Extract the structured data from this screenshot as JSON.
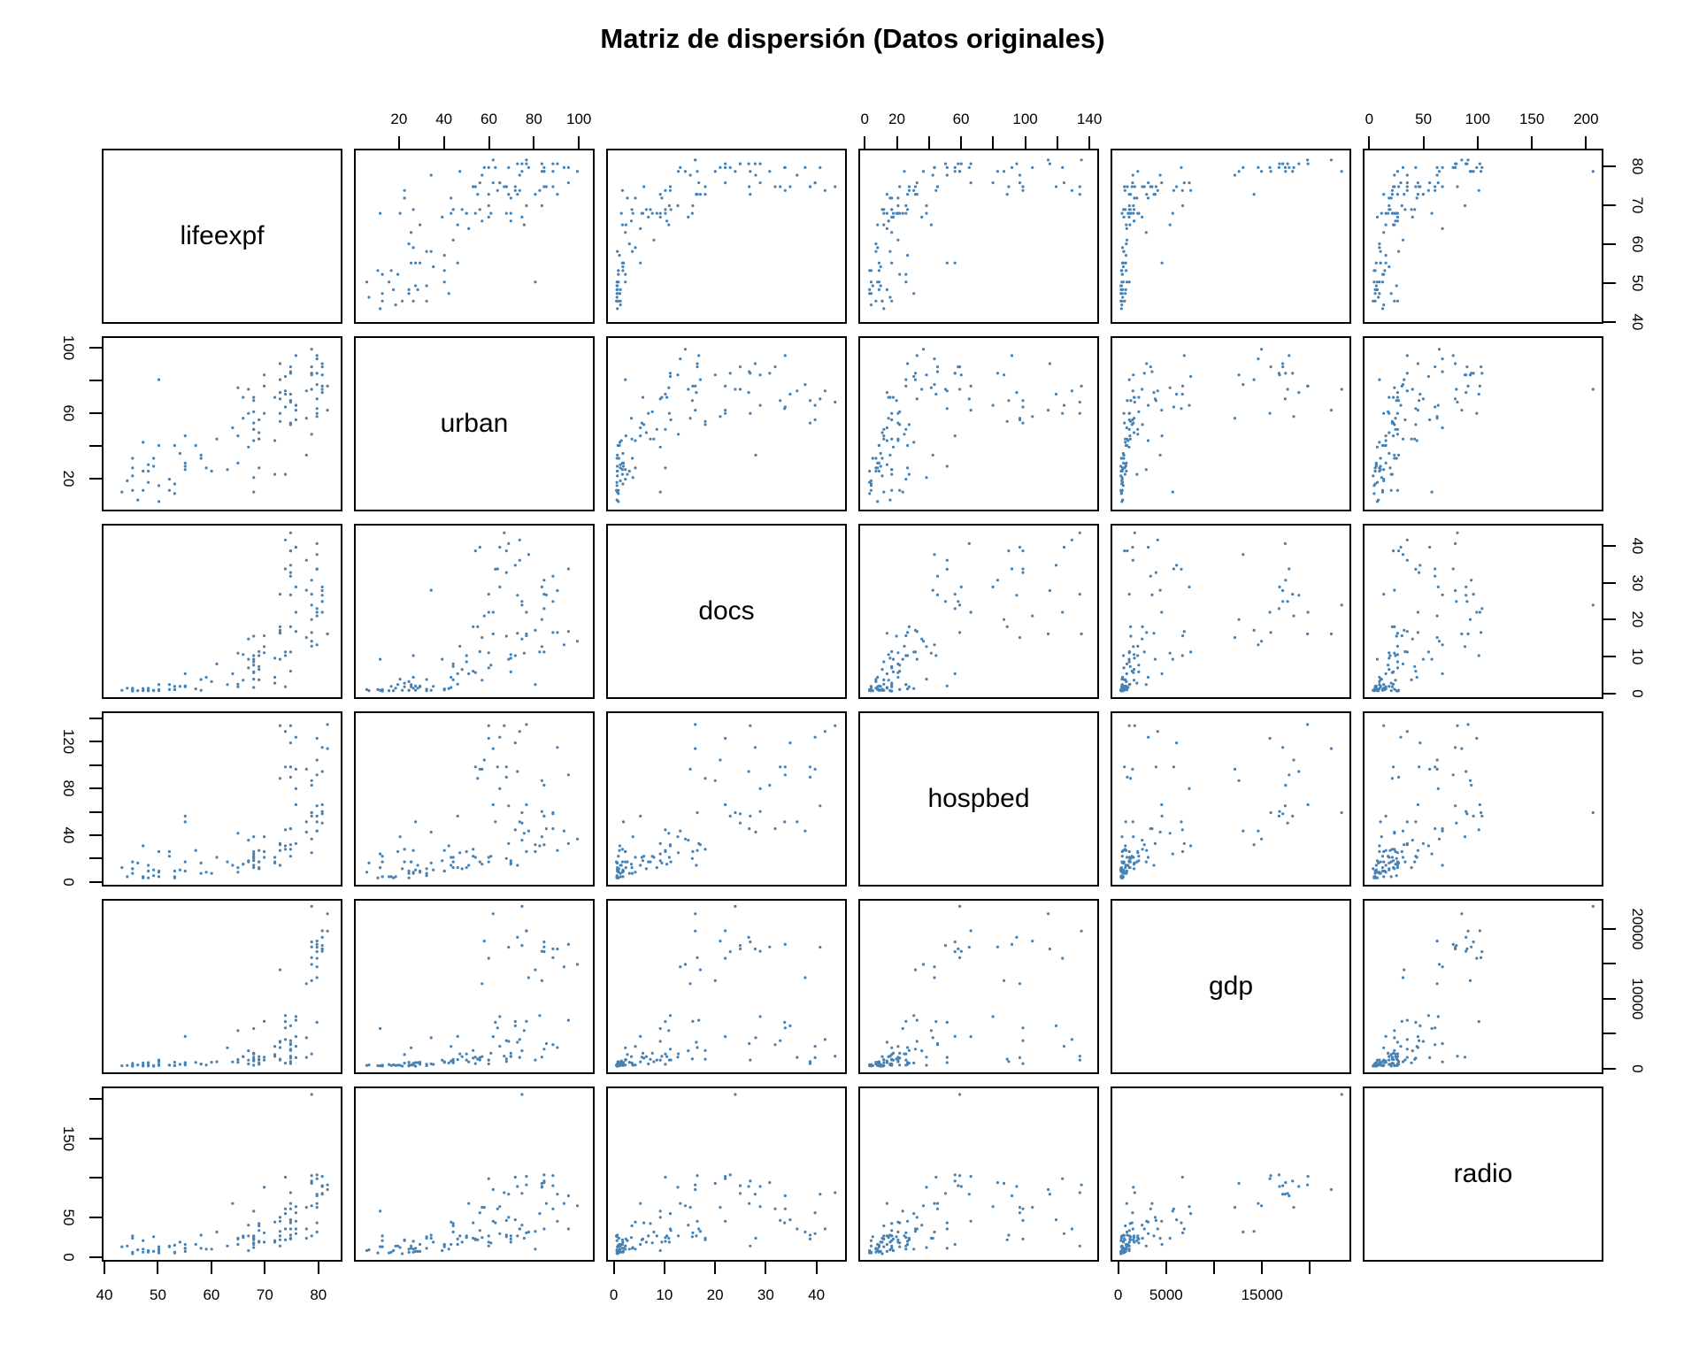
{
  "title": "Matriz de dispersión (Datos originales)",
  "point_color": "#4682B4",
  "chart_data": {
    "type": "scatter-matrix",
    "title": "Matriz de dispersión (Datos originales)",
    "columns": [
      "lifeexpf",
      "urban",
      "docs",
      "hospbed",
      "gdp",
      "radio"
    ],
    "variables": [
      {
        "name": "lifeexpf",
        "domain": [
          39.5,
          84.5
        ]
      },
      {
        "name": "urban",
        "domain": [
          0,
          107
        ]
      },
      {
        "name": "docs",
        "domain": [
          -1.5,
          46
        ]
      },
      {
        "name": "hospbed",
        "domain": [
          -4,
          146
        ]
      },
      {
        "name": "gdp",
        "domain": [
          -800,
          24300
        ]
      },
      {
        "name": "radio",
        "domain": [
          -6,
          216
        ]
      }
    ],
    "axes": {
      "top": [
        {
          "col": 1,
          "var": 1,
          "values": [
            20,
            40,
            60,
            80,
            100
          ],
          "labels": [
            "20",
            "40",
            "60",
            "80",
            "100"
          ]
        },
        {
          "col": 3,
          "var": 3,
          "values": [
            0,
            20,
            40,
            60,
            80,
            100,
            120,
            140
          ],
          "labels": [
            "0",
            "20",
            "",
            "60",
            "",
            "100",
            "",
            "140"
          ]
        },
        {
          "col": 5,
          "var": 5,
          "values": [
            0,
            50,
            100,
            150,
            200
          ],
          "labels": [
            "0",
            "50",
            "100",
            "150",
            "200"
          ]
        }
      ],
      "bottom": [
        {
          "col": 0,
          "var": 0,
          "values": [
            40,
            50,
            60,
            70,
            80
          ],
          "labels": [
            "40",
            "50",
            "60",
            "70",
            "80"
          ]
        },
        {
          "col": 2,
          "var": 2,
          "values": [
            0,
            10,
            20,
            30,
            40
          ],
          "labels": [
            "0",
            "10",
            "20",
            "30",
            "40"
          ]
        },
        {
          "col": 4,
          "var": 4,
          "values": [
            0,
            5000,
            10000,
            15000,
            20000
          ],
          "labels": [
            "0",
            "5000",
            "",
            "15000",
            ""
          ]
        }
      ],
      "left": [
        {
          "row": 1,
          "var": 1,
          "values": [
            20,
            40,
            60,
            80,
            100
          ],
          "labels": [
            "20",
            "",
            "60",
            "",
            "100"
          ]
        },
        {
          "row": 3,
          "var": 3,
          "values": [
            0,
            20,
            40,
            60,
            80,
            100,
            120,
            140
          ],
          "labels": [
            "0",
            "",
            "40",
            "",
            "80",
            "",
            "120",
            ""
          ]
        },
        {
          "row": 5,
          "var": 5,
          "values": [
            0,
            50,
            100,
            150,
            200
          ],
          "labels": [
            "0",
            "50",
            "",
            "150",
            ""
          ]
        }
      ],
      "right": [
        {
          "row": 0,
          "var": 0,
          "values": [
            40,
            50,
            60,
            70,
            80
          ],
          "labels": [
            "40",
            "50",
            "60",
            "70",
            "80"
          ]
        },
        {
          "row": 2,
          "var": 2,
          "values": [
            0,
            10,
            20,
            30,
            40
          ],
          "labels": [
            "0",
            "10",
            "20",
            "30",
            "40"
          ]
        },
        {
          "row": 4,
          "var": 4,
          "values": [
            0,
            5000,
            10000,
            15000,
            20000
          ],
          "labels": [
            "0",
            "",
            "10000",
            "",
            "20000"
          ]
        }
      ]
    },
    "observations": [
      [
        44,
        18,
        1,
        3,
        205,
        12
      ],
      [
        48,
        28,
        1,
        13,
        620,
        5
      ],
      [
        47,
        12,
        0.3,
        3,
        122,
        19
      ],
      [
        47,
        24,
        0.4,
        2,
        251,
        4
      ],
      [
        49,
        32,
        0.3,
        4,
        188,
        24
      ],
      [
        50,
        15,
        0.3,
        3,
        357,
        3
      ],
      [
        48,
        17,
        0.3,
        2,
        296,
        6
      ],
      [
        48,
        24,
        0.4,
        8,
        126,
        4
      ],
      [
        43,
        11,
        0.4,
        11,
        161,
        11
      ],
      [
        46,
        6,
        0.3,
        15,
        292,
        7
      ],
      [
        50,
        5,
        0.6,
        7,
        208,
        6
      ],
      [
        45,
        26,
        1,
        6,
        511,
        4
      ],
      [
        45,
        32,
        0.7,
        10,
        164,
        22
      ],
      [
        49,
        27,
        0.4,
        9,
        98,
        5
      ],
      [
        45,
        12,
        0.2,
        16,
        226,
        25
      ],
      [
        47,
        42,
        0.9,
        30,
        573,
        8
      ],
      [
        45,
        21,
        0.4,
        10,
        110,
        2
      ],
      [
        54,
        35,
        1.5,
        9,
        360,
        17
      ],
      [
        58,
        34,
        0.4,
        15,
        430,
        26
      ],
      [
        55,
        25,
        1.4,
        16,
        271,
        9
      ],
      [
        50,
        40,
        0.5,
        8,
        750,
        11
      ],
      [
        57,
        40,
        0.8,
        26,
        650,
        14
      ],
      [
        53,
        40,
        0.6,
        8,
        670,
        13
      ],
      [
        55,
        27,
        1.6,
        51,
        620,
        9
      ],
      [
        63,
        25,
        2,
        16,
        2790,
        12
      ],
      [
        55,
        46,
        5,
        56,
        4450,
        14
      ],
      [
        50,
        81,
        2,
        25,
        1000,
        8
      ],
      [
        55,
        29,
        1.6,
        8,
        383,
        5
      ],
      [
        64,
        51,
        5,
        13,
        730,
        67
      ],
      [
        59,
        26,
        4,
        7,
        275,
        8
      ],
      [
        53,
        16,
        1.5,
        3,
        202,
        4
      ],
      [
        58,
        32,
        3.4,
        6,
        406,
        9
      ],
      [
        53,
        10,
        0.6,
        2,
        165,
        3
      ],
      [
        52,
        12,
        0.6,
        21,
        260,
        11
      ],
      [
        52,
        19,
        2,
        25,
        250,
        12
      ],
      [
        60,
        24,
        2.8,
        6,
        676,
        8
      ],
      [
        68,
        20,
        3.5,
        38,
        230,
        10
      ],
      [
        65,
        29,
        1.4,
        7,
        681,
        14
      ],
      [
        68,
        43,
        1.2,
        13,
        867,
        14
      ],
      [
        69,
        26,
        10,
        26,
        377,
        18
      ],
      [
        61,
        44,
        7.7,
        20,
        748,
        30
      ],
      [
        65,
        46,
        2.1,
        11,
        1062,
        21
      ],
      [
        68,
        50,
        10,
        25,
        1886,
        23
      ],
      [
        68,
        54,
        5.3,
        20,
        1428,
        20
      ],
      [
        65,
        76,
        10.7,
        41,
        5310,
        22
      ],
      [
        68,
        70,
        5.5,
        17,
        2000,
        21
      ],
      [
        66,
        57,
        3.2,
        14,
        1500,
        23
      ],
      [
        68,
        50,
        8.3,
        11,
        1000,
        25
      ],
      [
        68,
        68,
        15.4,
        19,
        1157,
        24
      ],
      [
        70,
        77,
        15.5,
        25,
        6651,
        29
      ],
      [
        68,
        61,
        7.4,
        21,
        2000,
        16
      ],
      [
        70,
        84,
        12.5,
        38,
        1429,
        88
      ],
      [
        68,
        11,
        9,
        23,
        5600,
        57
      ],
      [
        73,
        81,
        17,
        31,
        14193,
        31
      ],
      [
        76,
        96,
        16.7,
        32,
        6818,
        34
      ],
      [
        74,
        83,
        11,
        30,
        7500,
        54
      ],
      [
        73,
        73,
        16.2,
        13,
        3604,
        25
      ],
      [
        67,
        39,
        9,
        17,
        980,
        6
      ],
      [
        69,
        44,
        3.3,
        11,
        580,
        38
      ],
      [
        69,
        44,
        7,
        16,
        1100,
        41
      ],
      [
        67,
        60,
        6.6,
        16,
        425,
        25
      ],
      [
        79,
        47,
        12.6,
        24,
        1898,
        25
      ],
      [
        75,
        53,
        18,
        27,
        2397,
        22
      ],
      [
        78,
        74,
        36.4,
        51,
        1382,
        34
      ],
      [
        70,
        60,
        10.8,
        20,
        1003,
        17
      ],
      [
        75,
        53,
        5.7,
        21,
        1289,
        42
      ],
      [
        73,
        69,
        9,
        32,
        3730,
        49
      ],
      [
        72,
        70,
        9.3,
        15,
        1538,
        17
      ],
      [
        73,
        91,
        16.4,
        26,
        2829,
        44
      ],
      [
        69,
        56,
        11.1,
        16,
        1010,
        32
      ],
      [
        66,
        70,
        10.3,
        14,
        1503,
        25
      ],
      [
        67,
        75,
        14.6,
        35,
        2354,
        39
      ],
      [
        75,
        85,
        11,
        31,
        2591,
        34
      ],
      [
        75,
        86,
        26.8,
        45,
        3408,
        67
      ],
      [
        75,
        89,
        32,
        45,
        3254,
        60
      ],
      [
        69,
        48,
        6.2,
        10,
        1500,
        17
      ],
      [
        78,
        34,
        28.1,
        42,
        4265,
        22
      ],
      [
        80,
        78,
        38,
        43,
        13047,
        30
      ],
      [
        80,
        63,
        33.9,
        51,
        6505,
        42
      ],
      [
        80,
        69,
        41,
        65,
        17500,
        79
      ],
      [
        81,
        73,
        26.7,
        95,
        18944,
        89
      ],
      [
        79,
        85,
        30.9,
        83,
        17539,
        94
      ],
      [
        79,
        89,
        16.4,
        59,
        15974,
        103
      ],
      [
        78,
        57,
        15,
        97,
        12170,
        62
      ],
      [
        81,
        89,
        25,
        58,
        17245,
        90
      ],
      [
        80,
        96,
        34,
        92,
        17912,
        77
      ],
      [
        82,
        62,
        16,
        115,
        22384,
        85
      ],
      [
        80,
        58,
        21,
        105,
        18396,
        62
      ],
      [
        79,
        85,
        27,
        56,
        18277,
        96
      ],
      [
        81,
        75,
        25,
        50,
        17755,
        80
      ],
      [
        81,
        84,
        29,
        60,
        16900,
        89
      ],
      [
        80,
        60,
        22,
        124,
        15877,
        99
      ],
      [
        81,
        91,
        28,
        116,
        17241,
        79
      ],
      [
        82,
        77,
        16,
        136,
        19860,
        91
      ],
      [
        79,
        75,
        24,
        59,
        23474,
        208
      ],
      [
        81,
        77,
        22,
        66,
        19904,
        102
      ],
      [
        80,
        85,
        23,
        56,
        16848,
        104
      ],
      [
        79,
        84,
        20,
        87,
        12600,
        93
      ],
      [
        74,
        74,
        42,
        130,
        4000,
        34
      ],
      [
        75,
        67,
        44,
        135,
        1570,
        81
      ],
      [
        76,
        65,
        40,
        125,
        3000,
        28
      ],
      [
        74,
        64,
        34,
        99,
        5700,
        60
      ],
      [
        76,
        62,
        22,
        66,
        4429,
        44
      ],
      [
        76,
        65,
        29,
        80,
        7350,
        63
      ],
      [
        73,
        55,
        18,
        89,
        1130,
        20
      ],
      [
        75,
        68,
        33,
        99,
        3831,
        45
      ],
      [
        75,
        72,
        35,
        120,
        6000,
        46
      ],
      [
        76,
        56,
        40,
        97,
        1347,
        55
      ],
      [
        75,
        68,
        39,
        90,
        780,
        26
      ],
      [
        75,
        54,
        39,
        99,
        480,
        21
      ],
      [
        73,
        60,
        27,
        135,
        1000,
        12
      ],
      [
        74,
        72,
        10,
        44,
        6627,
        101
      ],
      [
        79,
        100,
        14,
        36,
        14990,
        64
      ],
      [
        80,
        94,
        13,
        43,
        14641,
        67
      ],
      [
        72,
        22,
        2.4,
        16,
        1800,
        19
      ],
      [
        72,
        43,
        4,
        20,
        2995,
        43
      ],
      [
        74,
        22,
        1.4,
        27,
        540,
        20
      ]
    ]
  }
}
